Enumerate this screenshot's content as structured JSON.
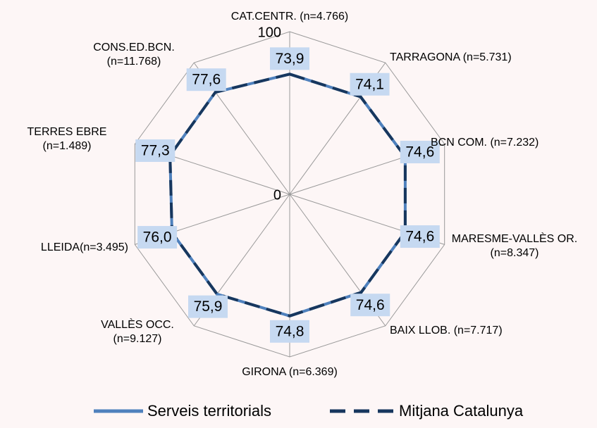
{
  "chart_data": {
    "type": "radar",
    "categories": [
      "CAT.CENTR. (n=4.766)",
      "TARRAGONA (n=5.731)",
      "BCN COM. (n=7.232)",
      "MARESME-VALLÈS OR. (n=8.347)",
      "BAIX LLOB. (n=7.717)",
      "GIRONA (n=6.369)",
      "VALLÈS OCC. (n=9.127)",
      "LLEIDA(n=3.495)",
      "TERRES EBRE (n=1.489)",
      "CONS.ED.BCN. (n=11.768)"
    ],
    "series": [
      {
        "name": "Serveis territorials",
        "color": "#4f81bd",
        "line": "solid",
        "values": [
          73.9,
          74.1,
          74.6,
          74.6,
          74.6,
          74.8,
          75.9,
          76.0,
          77.3,
          77.6
        ],
        "value_labels": [
          "73,9",
          "74,1",
          "74,6",
          "74,6",
          "74,6",
          "74,8",
          "75,9",
          "76,0",
          "77,3",
          "77,6"
        ]
      },
      {
        "name": "Mitjana Catalunya",
        "color": "#17375e",
        "line": "dashed",
        "values": [
          73.9,
          74.1,
          74.6,
          74.6,
          74.6,
          74.8,
          75.9,
          76.0,
          77.3,
          77.6
        ]
      }
    ],
    "ylim": [
      0,
      100
    ],
    "yticks": [
      0,
      100
    ],
    "grid": true,
    "legend": "bottom"
  }
}
